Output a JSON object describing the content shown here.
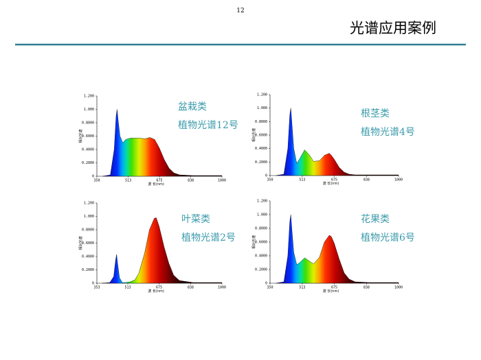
{
  "page_number": "12",
  "title": "光谱应用案例",
  "chart_data": [
    {
      "type": "area",
      "annotations": [
        "盆栽类",
        "植物光谱12号"
      ],
      "ylabel": "相对光谱",
      "xlabel": "波 长(nm)",
      "x": [
        380,
        420,
        440,
        450,
        455,
        460,
        470,
        485,
        500,
        525,
        550,
        570,
        600,
        625,
        650,
        660,
        675,
        700,
        725,
        750,
        780,
        850,
        1000
      ],
      "values": [
        0,
        0.02,
        0.4,
        0.9,
        1.0,
        0.85,
        0.6,
        0.5,
        0.55,
        0.57,
        0.57,
        0.57,
        0.56,
        0.58,
        0.55,
        0.5,
        0.42,
        0.25,
        0.12,
        0.05,
        0.02,
        0.01,
        0.01
      ],
      "xlim": [
        350,
        1000
      ],
      "xticks": [
        350,
        513,
        675,
        838,
        1000
      ],
      "ylim": [
        0,
        1.2
      ],
      "yticks": [
        0,
        {
          "value": 0.2,
          "label": "0.2000"
        },
        {
          "value": 0.4,
          "label": "0.4000"
        },
        {
          "value": 0.6,
          "label": "0.6000"
        },
        {
          "value": 0.8,
          "label": "0.8000"
        },
        {
          "value": 1,
          "label": "1.000"
        },
        {
          "value": 1.2,
          "label": "1.200"
        }
      ]
    },
    {
      "type": "area",
      "annotations": [
        "根茎类",
        "植物光谱4号"
      ],
      "ylabel": "相对光谱",
      "xlabel": "波 长(nm)",
      "x": [
        380,
        420,
        440,
        450,
        455,
        460,
        470,
        485,
        500,
        525,
        550,
        570,
        600,
        625,
        650,
        660,
        675,
        700,
        725,
        750,
        780,
        850,
        1000
      ],
      "values": [
        0,
        0.02,
        0.4,
        0.9,
        1.0,
        0.8,
        0.4,
        0.18,
        0.25,
        0.38,
        0.3,
        0.21,
        0.22,
        0.3,
        0.33,
        0.3,
        0.24,
        0.12,
        0.05,
        0.02,
        0.01,
        0.01,
        0.01
      ],
      "xlim": [
        350,
        1000
      ],
      "xticks": [
        350,
        513,
        675,
        838,
        1000
      ],
      "ylim": [
        0,
        1.2
      ],
      "yticks": [
        0,
        {
          "value": 0.2,
          "label": "0.2000"
        },
        {
          "value": 0.4,
          "label": "0.4000"
        },
        {
          "value": 0.6,
          "label": "0.6000"
        },
        {
          "value": 0.8,
          "label": "0.8000"
        },
        {
          "value": 1,
          "label": "1.000"
        },
        {
          "value": 1.2,
          "label": "1.200"
        }
      ]
    },
    {
      "type": "area",
      "annotations": [
        "叶菜类",
        "植物光谱2号"
      ],
      "ylabel": "相对光谱",
      "xlabel": "波 长(nm)",
      "x": [
        380,
        420,
        440,
        450,
        455,
        460,
        470,
        485,
        500,
        525,
        550,
        570,
        600,
        625,
        650,
        660,
        675,
        700,
        725,
        750,
        780,
        850,
        1000
      ],
      "values": [
        0,
        0.01,
        0.1,
        0.35,
        0.43,
        0.3,
        0.08,
        0.01,
        0.01,
        0.02,
        0.05,
        0.15,
        0.45,
        0.8,
        0.97,
        0.98,
        0.85,
        0.55,
        0.3,
        0.12,
        0.04,
        0.01,
        0.01
      ],
      "xlim": [
        353,
        1000
      ],
      "xticks": [
        353,
        513,
        675,
        838,
        1000
      ],
      "ylim": [
        0,
        1.2
      ],
      "yticks": [
        0,
        {
          "value": 0.2,
          "label": "0.2000"
        },
        {
          "value": 0.4,
          "label": "0.4000"
        },
        {
          "value": 0.6,
          "label": "0.6000"
        },
        {
          "value": 0.8,
          "label": "0.8000"
        },
        {
          "value": 1,
          "label": "1.000"
        },
        {
          "value": 1.2,
          "label": "1.200"
        }
      ]
    },
    {
      "type": "area",
      "annotations": [
        "花果类",
        "植物光谱6号"
      ],
      "ylabel": "相对光谱",
      "xlabel": "波 长(nm)",
      "x": [
        380,
        420,
        440,
        450,
        455,
        460,
        470,
        485,
        500,
        525,
        550,
        570,
        600,
        625,
        650,
        660,
        675,
        700,
        725,
        750,
        780,
        850,
        1000
      ],
      "values": [
        0,
        0.02,
        0.4,
        0.9,
        1.0,
        0.8,
        0.45,
        0.27,
        0.3,
        0.37,
        0.32,
        0.28,
        0.38,
        0.6,
        0.7,
        0.68,
        0.58,
        0.35,
        0.15,
        0.06,
        0.02,
        0.01,
        0.01
      ],
      "xlim": [
        350,
        1000
      ],
      "xticks": [
        350,
        513,
        675,
        838,
        1000
      ],
      "ylim": [
        0,
        1.2
      ],
      "yticks": [
        0,
        {
          "value": 0.2,
          "label": "0.2000"
        },
        {
          "value": 0.4,
          "label": "0.4000"
        },
        {
          "value": 0.6,
          "label": "0.6000"
        },
        {
          "value": 0.8,
          "label": "0.8000"
        },
        {
          "value": 1,
          "label": "1.000"
        },
        {
          "value": 1.2,
          "label": "1.200"
        }
      ]
    }
  ]
}
